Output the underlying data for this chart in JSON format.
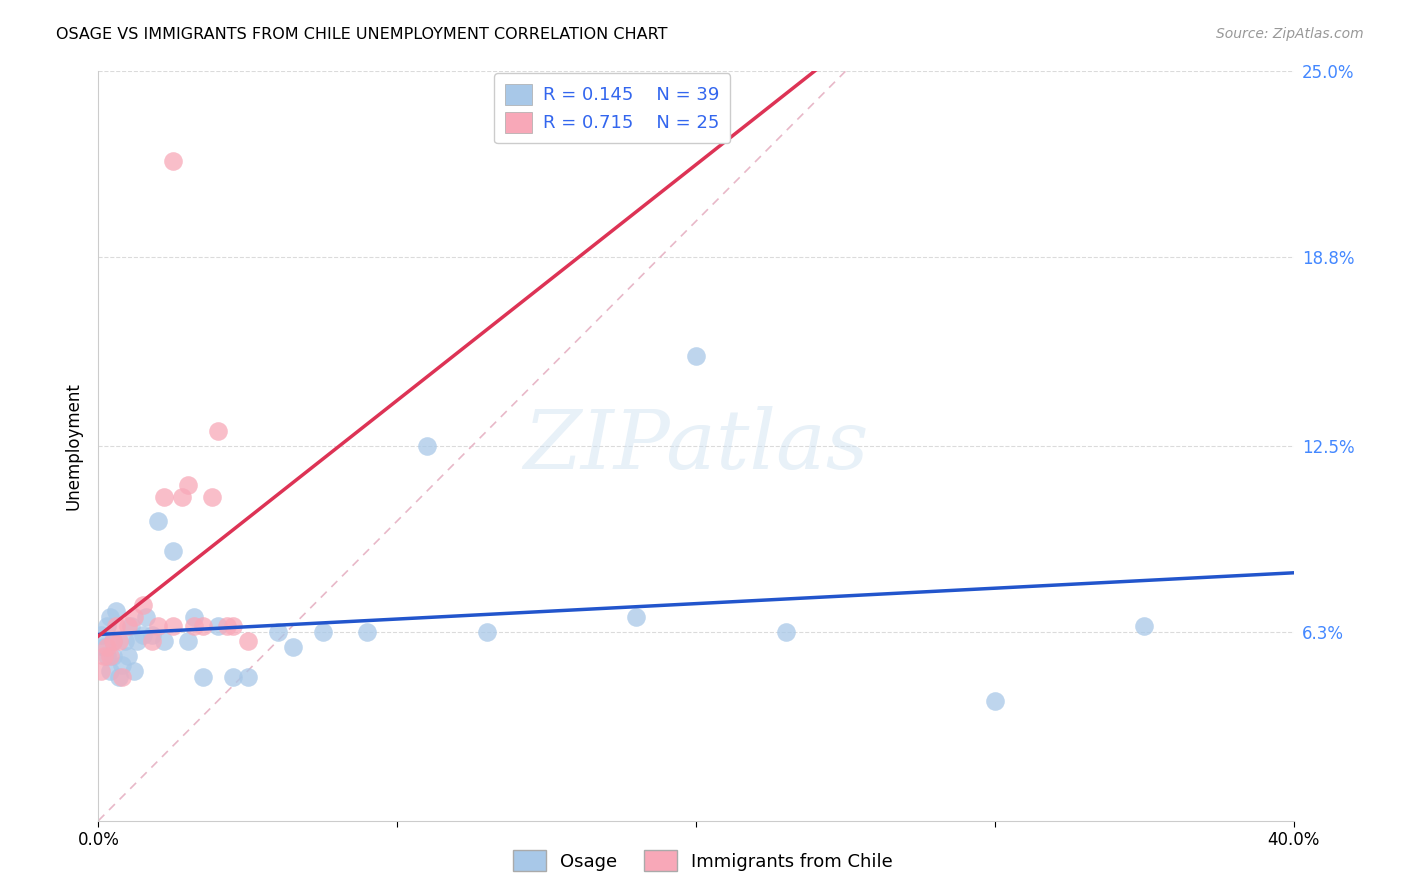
{
  "title": "OSAGE VS IMMIGRANTS FROM CHILE UNEMPLOYMENT CORRELATION CHART",
  "source": "Source: ZipAtlas.com",
  "ylabel": "Unemployment",
  "xlim": [
    0.0,
    0.4
  ],
  "ylim": [
    0.0,
    0.25
  ],
  "ytick_positions": [
    0.063,
    0.125,
    0.188,
    0.25
  ],
  "ytick_labels": [
    "6.3%",
    "12.5%",
    "18.8%",
    "25.0%"
  ],
  "xtick_positions": [
    0.0,
    0.1,
    0.2,
    0.3,
    0.4
  ],
  "xtick_labels": [
    "0.0%",
    "",
    "",
    "",
    "40.0%"
  ],
  "label1": "Osage",
  "label2": "Immigrants from Chile",
  "color1": "#a8c8e8",
  "color2": "#f8a8b8",
  "trendline1_color": "#2255cc",
  "trendline2_color": "#dd3355",
  "diag_color": "#e8b8c8",
  "r1": "0.145",
  "n1": "39",
  "r2": "0.715",
  "n2": "25",
  "legend_text_color": "#3366ee",
  "watermark_text": "ZIPatlas",
  "osage_x": [
    0.001,
    0.002,
    0.003,
    0.003,
    0.004,
    0.004,
    0.005,
    0.005,
    0.006,
    0.007,
    0.008,
    0.009,
    0.01,
    0.011,
    0.012,
    0.013,
    0.015,
    0.016,
    0.018,
    0.02,
    0.022,
    0.025,
    0.03,
    0.032,
    0.035,
    0.04,
    0.045,
    0.05,
    0.06,
    0.065,
    0.075,
    0.09,
    0.11,
    0.13,
    0.18,
    0.2,
    0.23,
    0.3,
    0.35
  ],
  "osage_y": [
    0.062,
    0.058,
    0.065,
    0.055,
    0.068,
    0.05,
    0.055,
    0.06,
    0.07,
    0.048,
    0.052,
    0.06,
    0.055,
    0.065,
    0.05,
    0.06,
    0.062,
    0.068,
    0.062,
    0.1,
    0.06,
    0.09,
    0.06,
    0.068,
    0.048,
    0.065,
    0.048,
    0.048,
    0.063,
    0.058,
    0.063,
    0.063,
    0.125,
    0.063,
    0.068,
    0.155,
    0.063,
    0.04,
    0.065
  ],
  "chile_x": [
    0.001,
    0.002,
    0.003,
    0.004,
    0.005,
    0.006,
    0.007,
    0.008,
    0.01,
    0.012,
    0.015,
    0.018,
    0.02,
    0.022,
    0.025,
    0.028,
    0.03,
    0.032,
    0.035,
    0.038,
    0.04,
    0.043,
    0.045,
    0.05,
    0.025
  ],
  "chile_y": [
    0.05,
    0.055,
    0.058,
    0.055,
    0.06,
    0.065,
    0.06,
    0.048,
    0.065,
    0.068,
    0.072,
    0.06,
    0.065,
    0.108,
    0.065,
    0.108,
    0.112,
    0.065,
    0.065,
    0.108,
    0.13,
    0.065,
    0.065,
    0.06,
    0.22
  ]
}
